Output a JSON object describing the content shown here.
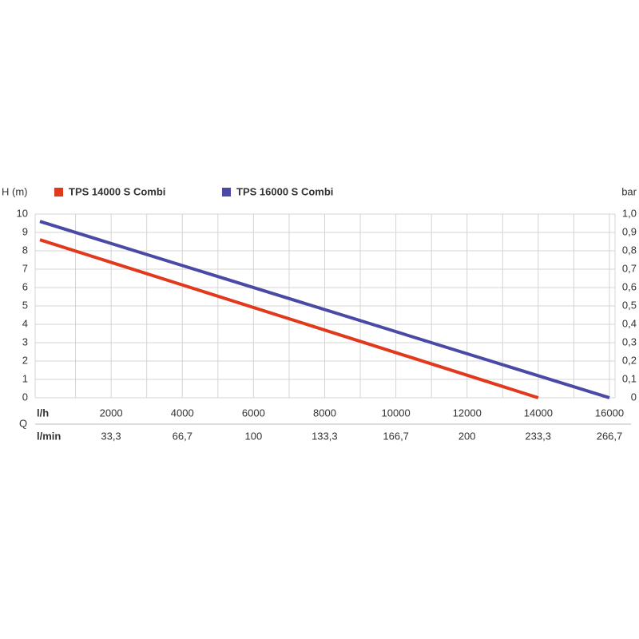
{
  "chart_data": {
    "type": "line",
    "y_label": "H (m)",
    "y2_label": "bar",
    "x_label": "Q",
    "x_unit": "l/h",
    "x2_unit": "l/min",
    "xlim": [
      0,
      16000
    ],
    "xticks": [
      2000,
      4000,
      6000,
      8000,
      10000,
      12000,
      14000,
      16000
    ],
    "x2lim": [
      0,
      266.7
    ],
    "x2ticks": [
      {
        "value": 33.3,
        "label": "33,3"
      },
      {
        "value": 66.7,
        "label": "66,7"
      },
      100,
      {
        "value": 133.3,
        "label": "133,3"
      },
      {
        "value": 166.7,
        "label": "166,7"
      },
      200,
      {
        "value": 233.3,
        "label": "233,3"
      },
      {
        "value": 266.7,
        "label": "266,7"
      }
    ],
    "ylim": [
      0,
      10
    ],
    "yticks": [
      0,
      1,
      2,
      3,
      4,
      5,
      6,
      7,
      8,
      9,
      10
    ],
    "y2lim": [
      0,
      1
    ],
    "y2ticks": [
      0,
      {
        "value": 0.1,
        "label": "0,1"
      },
      {
        "value": 0.2,
        "label": "0,2"
      },
      {
        "value": 0.3,
        "label": "0,3"
      },
      {
        "value": 0.4,
        "label": "0,4"
      },
      {
        "value": 0.5,
        "label": "0,5"
      },
      {
        "value": 0.6,
        "label": "0,6"
      },
      {
        "value": 0.7,
        "label": "0,7"
      },
      {
        "value": 0.8,
        "label": "0,8"
      },
      {
        "value": 0.9,
        "label": "0,9"
      },
      {
        "value": 1,
        "label": "1,0"
      }
    ],
    "grid": true,
    "series": [
      {
        "name": "TPS 14000 S Combi",
        "color": "#e2381c",
        "x": [
          0,
          14000
        ],
        "values": [
          8.6,
          0
        ]
      },
      {
        "name": "TPS 16000 S Combi",
        "color": "#4a4aa6",
        "x": [
          0,
          16000
        ],
        "values": [
          9.6,
          0
        ]
      }
    ]
  }
}
